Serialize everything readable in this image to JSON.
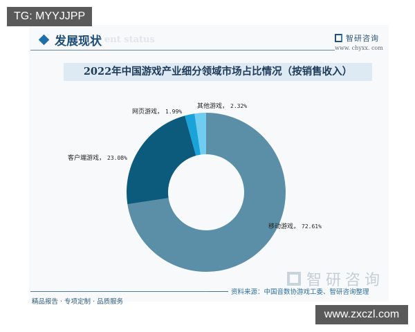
{
  "overlay": {
    "tg_label": "TG: MYYJJPP",
    "site_url": "www.zxczl.com"
  },
  "header": {
    "section_title": "发展现状",
    "section_subtitle_en": "ent status",
    "brand_name": "智研咨询",
    "brand_url": "www. chyxx. com"
  },
  "chart_data": {
    "type": "pie",
    "variant": "donut",
    "title": "2022年中国游戏产业细分领域市场占比情况（按销售收入）",
    "categories": [
      "移动游戏",
      "客户端游戏",
      "网页游戏",
      "其他游戏"
    ],
    "values": [
      72.61,
      23.08,
      1.99,
      2.32
    ],
    "unit": "%",
    "colors": [
      "#5b8fa8",
      "#0c5a7c",
      "#1aa3d9",
      "#6fcdf2"
    ],
    "start_angle": "12 o'clock, clockwise",
    "labels": [
      {
        "name": "移动游戏",
        "value_text": "72.61%"
      },
      {
        "name": "客户端游戏",
        "value_text": "23.08%"
      },
      {
        "name": "网页游戏",
        "value_text": "1.99%"
      },
      {
        "name": "其他游戏",
        "value_text": "2.32%"
      }
    ],
    "legend": "none (inline labels)"
  },
  "footer": {
    "watermark_brand": "智研咨询",
    "source": "资料来源：中国音数协游戏工委、智研咨询整理",
    "tagline": "精品报告 · 专项定制 · 品质服务"
  }
}
